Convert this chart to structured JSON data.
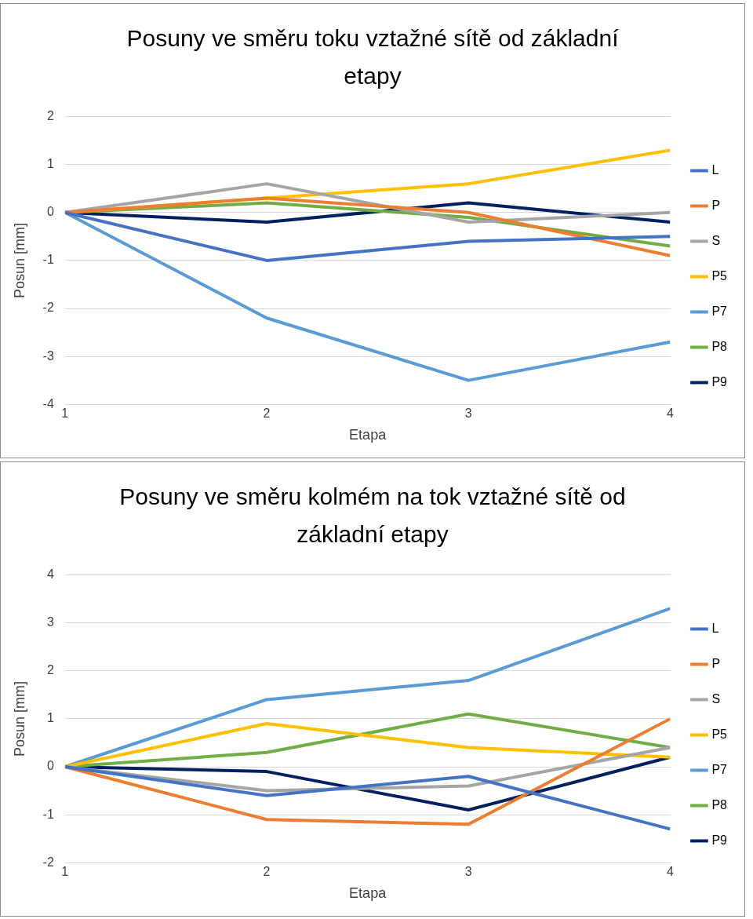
{
  "chart_data": [
    {
      "type": "line",
      "title": "Posuny ve směru toku vztažné sítě od základní etapy",
      "xlabel": "Etapa",
      "ylabel": "Posun [mm]",
      "x": [
        1,
        2,
        3,
        4
      ],
      "xlim": [
        1,
        4
      ],
      "xticks": [
        1,
        2,
        3,
        4
      ],
      "ylim": [
        -4,
        2
      ],
      "yticks": [
        -4,
        -3,
        -2,
        -1,
        0,
        1,
        2
      ],
      "grid": "y",
      "legend": "right",
      "marker": "none",
      "line_style": "solid",
      "series": [
        {
          "name": "L",
          "color": "#4472c4",
          "values": [
            0,
            -1.0,
            -0.6,
            -0.5
          ]
        },
        {
          "name": "P",
          "color": "#ed7d31",
          "values": [
            0,
            0.3,
            0.0,
            -0.9
          ]
        },
        {
          "name": "S",
          "color": "#a5a5a5",
          "values": [
            0,
            0.6,
            -0.2,
            0
          ]
        },
        {
          "name": "P5",
          "color": "#ffc000",
          "values": [
            0,
            0.3,
            0.6,
            1.3
          ]
        },
        {
          "name": "P7",
          "color": "#5b9bd5",
          "values": [
            0,
            -2.2,
            -3.5,
            -2.7
          ]
        },
        {
          "name": "P8",
          "color": "#70ad47",
          "values": [
            0,
            0.2,
            -0.1,
            -0.7
          ]
        },
        {
          "name": "P9",
          "color": "#002060",
          "values": [
            0,
            -0.2,
            0.2,
            -0.2
          ]
        }
      ]
    },
    {
      "type": "line",
      "title": "Posuny ve směru kolmém na tok vztažné sítě od základní etapy",
      "xlabel": "Etapa",
      "ylabel": "Posun [mm]",
      "x": [
        1,
        2,
        3,
        4
      ],
      "xlim": [
        1,
        4
      ],
      "xticks": [
        1,
        2,
        3,
        4
      ],
      "ylim": [
        -2,
        4
      ],
      "yticks": [
        -2,
        -1,
        0,
        1,
        2,
        3,
        4
      ],
      "grid": "y",
      "legend": "right",
      "marker": "none",
      "line_style": "solid",
      "series": [
        {
          "name": "L",
          "color": "#4472c4",
          "values": [
            0,
            -0.6,
            -0.2,
            -1.3
          ]
        },
        {
          "name": "P",
          "color": "#ed7d31",
          "values": [
            0,
            -1.1,
            -1.2,
            1.0
          ]
        },
        {
          "name": "S",
          "color": "#a5a5a5",
          "values": [
            0,
            -0.5,
            -0.4,
            0.4
          ]
        },
        {
          "name": "P5",
          "color": "#ffc000",
          "values": [
            0,
            0.9,
            0.4,
            0.2
          ]
        },
        {
          "name": "P7",
          "color": "#5b9bd5",
          "values": [
            0,
            1.4,
            1.8,
            3.3
          ]
        },
        {
          "name": "P8",
          "color": "#70ad47",
          "values": [
            0,
            0.3,
            1.1,
            0.4
          ]
        },
        {
          "name": "P9",
          "color": "#002060",
          "values": [
            0,
            -0.1,
            -0.9,
            0.2
          ]
        }
      ]
    }
  ]
}
